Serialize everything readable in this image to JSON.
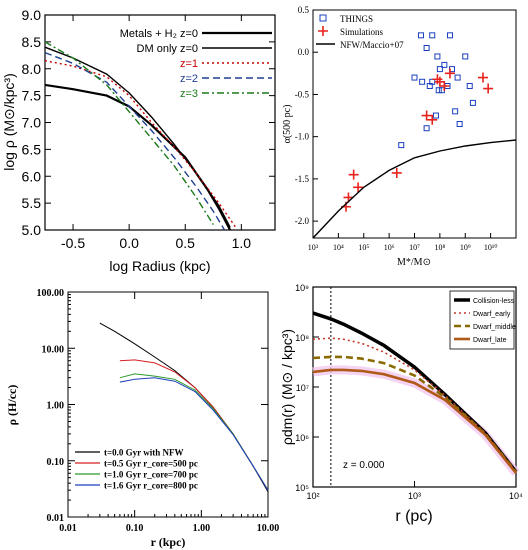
{
  "chart_data": [
    {
      "type": "line",
      "xlabel": "log Radius (kpc)",
      "ylabel": "log ρ (M⊙/kpc³)",
      "xlim": [
        -0.75,
        1.3
      ],
      "ylim": [
        5.0,
        9.0
      ],
      "xticks": [
        "-0.5",
        "0.0",
        "0.5",
        "1.0"
      ],
      "yticks": [
        "5.0",
        "5.5",
        "6.0",
        "6.5",
        "7.0",
        "7.5",
        "8.0",
        "8.5",
        "9.0"
      ],
      "legend_position": "top-right",
      "series": [
        {
          "name": "Metals + H₂  z=0",
          "color": "#000000",
          "style": "solid",
          "width": 2.2,
          "x": [
            -0.75,
            -0.5,
            -0.2,
            0.0,
            0.2,
            0.4,
            0.5,
            0.6,
            0.7,
            0.8,
            0.9
          ],
          "y": [
            7.7,
            7.62,
            7.5,
            7.3,
            6.95,
            6.55,
            6.35,
            6.05,
            5.75,
            5.4,
            5.0
          ]
        },
        {
          "name": "DM only  z=0",
          "color": "#000000",
          "style": "solid",
          "width": 1.4,
          "x": [
            -0.75,
            -0.5,
            -0.2,
            0.0,
            0.2,
            0.4,
            0.6,
            0.8,
            0.9
          ],
          "y": [
            8.4,
            8.2,
            7.9,
            7.55,
            7.1,
            6.6,
            6.05,
            5.45,
            5.05
          ]
        },
        {
          "name": "z=1",
          "color": "#cc0000",
          "style": "dotted",
          "width": 1.4,
          "x": [
            -0.75,
            -0.5,
            -0.2,
            0.0,
            0.2,
            0.4,
            0.6,
            0.8,
            0.95
          ],
          "y": [
            8.15,
            8.05,
            7.85,
            7.5,
            7.0,
            6.55,
            6.05,
            5.5,
            5.05
          ]
        },
        {
          "name": "z=2",
          "color": "#1f3f8f",
          "style": "dashed",
          "width": 1.4,
          "x": [
            -0.75,
            -0.5,
            -0.2,
            0.0,
            0.2,
            0.4,
            0.6,
            0.75,
            0.85
          ],
          "y": [
            8.3,
            8.1,
            7.75,
            7.3,
            6.85,
            6.35,
            5.8,
            5.35,
            5.0
          ]
        },
        {
          "name": "z=3",
          "color": "#1a7a1a",
          "style": "dashdot",
          "width": 1.4,
          "x": [
            -0.75,
            -0.5,
            -0.2,
            0.0,
            0.2,
            0.4,
            0.6,
            0.75
          ],
          "y": [
            8.5,
            8.2,
            7.7,
            7.2,
            6.7,
            6.2,
            5.6,
            5.1
          ]
        }
      ]
    },
    {
      "type": "scatter",
      "xlabel": "M*/M⊙",
      "ylabel": "α(500 pc)",
      "xscale": "log",
      "xlim": [
        1000,
        100000000000.0
      ],
      "ylim": [
        -2.2,
        0.5
      ],
      "xticks": [
        "10³",
        "10⁴",
        "10⁵",
        "10⁶",
        "10⁷",
        "10⁸",
        "10⁹",
        "10¹⁰"
      ],
      "yticks": [
        "0.5",
        "0.0",
        "-0.5",
        "-1.0",
        "-1.5",
        "-2.0"
      ],
      "legend_position": "top-left",
      "legend": [
        "THINGS",
        "Simulations",
        "NFW/Maccio+07"
      ],
      "series": [
        {
          "name": "THINGS",
          "marker": "square",
          "color": "#1a3fbf",
          "x": [
            10000000.0,
            20000000.0,
            30000000.0,
            40000000.0,
            50000000.0,
            70000000.0,
            100000000.0,
            150000000.0,
            200000000.0,
            300000000.0,
            500000000.0,
            1000000000.0,
            2000000000.0,
            50000000.0,
            80000000.0,
            120000000.0,
            30000000.0,
            250000000.0,
            600000000.0,
            1500000000.0,
            3000000.0,
            18000000.0,
            400000000.0,
            90000000.0
          ],
          "y": [
            -0.3,
            -0.35,
            0.05,
            -0.4,
            -0.35,
            -0.75,
            -0.2,
            -0.15,
            -0.4,
            -0.2,
            -0.3,
            -0.05,
            -0.6,
            0.2,
            -0.05,
            -0.45,
            -0.9,
            0.2,
            -0.85,
            -0.4,
            -1.1,
            0.2,
            -0.7,
            -0.45
          ]
        },
        {
          "name": "Simulations",
          "marker": "plus",
          "color": "#e8221c",
          "x": [
            20000.0,
            25000.0,
            40000.0,
            60000.0,
            2000000.0,
            30000000.0,
            50000000.0,
            80000000.0,
            100000000.0,
            150000000.0,
            250000000.0,
            5000000000.0,
            8000000000.0
          ],
          "y": [
            -1.83,
            -1.72,
            -1.45,
            -1.6,
            -1.43,
            -0.75,
            -0.8,
            -0.32,
            -0.35,
            -0.4,
            -0.25,
            -0.3,
            -0.43
          ]
        },
        {
          "name": "NFW/Maccio+07",
          "type": "line",
          "color": "#000000",
          "x": [
            1000,
            10000.0,
            100000.0,
            1000000.0,
            10000000.0,
            100000000.0,
            1000000000.0,
            10000000000.0,
            100000000000.0
          ],
          "y": [
            -2.2,
            -1.88,
            -1.6,
            -1.4,
            -1.25,
            -1.17,
            -1.11,
            -1.07,
            -1.04
          ]
        }
      ]
    },
    {
      "type": "line",
      "xlabel": "r (kpc)",
      "ylabel": "ρ (H/cc)",
      "xscale": "log",
      "yscale": "log",
      "xlim": [
        0.01,
        10.0
      ],
      "ylim": [
        0.01,
        100.0
      ],
      "xticks": [
        "0.01",
        "0.10",
        "1.00",
        "10.00"
      ],
      "yticks": [
        "100.00",
        "10.00",
        "1.00",
        "0.10",
        "0.01"
      ],
      "legend_position": "bottom-left",
      "series": [
        {
          "name": "t=0.0 Gyr with NFW",
          "color": "#000000",
          "x": [
            0.03,
            0.05,
            0.1,
            0.2,
            0.4,
            0.8,
            1.5,
            3.0,
            6.0,
            10.0
          ],
          "y": [
            28,
            20,
            12,
            7,
            4.0,
            2.0,
            0.9,
            0.3,
            0.08,
            0.028
          ]
        },
        {
          "name": "t=0.5 Gyr r_core=500 pc",
          "color": "#d62020",
          "x": [
            0.06,
            0.1,
            0.2,
            0.4,
            0.8,
            1.5,
            3.0,
            6.0,
            10.0
          ],
          "y": [
            6.0,
            6.2,
            5.5,
            3.8,
            2.0,
            0.9,
            0.3,
            0.08,
            0.03
          ]
        },
        {
          "name": "t=1.0 Gyr r_core=700 pc",
          "color": "#2a9a2a",
          "x": [
            0.06,
            0.1,
            0.2,
            0.4,
            0.8,
            1.5,
            3.0,
            6.0,
            10.0
          ],
          "y": [
            3.0,
            3.5,
            3.2,
            2.8,
            1.8,
            0.85,
            0.3,
            0.08,
            0.03
          ]
        },
        {
          "name": "t=1.6 Gyr r_core=800 pc",
          "color": "#1f3fbf",
          "x": [
            0.06,
            0.1,
            0.2,
            0.4,
            0.8,
            1.5,
            3.0,
            6.0,
            10.0
          ],
          "y": [
            2.5,
            2.8,
            3.0,
            2.6,
            1.7,
            0.8,
            0.29,
            0.08,
            0.03
          ]
        }
      ]
    },
    {
      "type": "line",
      "xlabel": "r (pc)",
      "ylabel": "ρdm(r) (M⊙ / kpc³)",
      "xscale": "log",
      "yscale": "log",
      "xlim": [
        100,
        10000
      ],
      "ylim": [
        100000,
        1000000000
      ],
      "xticks": [
        "10²",
        "10³",
        "10⁴"
      ],
      "yticks": [
        "10⁹",
        "10⁸",
        "10⁷",
        "10⁶",
        "10⁵"
      ],
      "legend_position": "top-right",
      "annotation": "z = 0.000",
      "vline_x": 150,
      "series": [
        {
          "name": "Collision-less",
          "color": "#000000",
          "style": "solid",
          "x": [
            100,
            150,
            200,
            300,
            500,
            1000,
            2000,
            5000,
            10000
          ],
          "y": [
            300000000,
            230000000,
            180000000,
            120000000,
            68000000,
            25000000,
            7000000,
            1200000,
            200000
          ]
        },
        {
          "name": "Dwarf_early",
          "color": "#c0392b",
          "style": "dotted",
          "x": [
            100,
            150,
            200,
            300,
            500,
            1000,
            2000,
            5000,
            10000
          ],
          "y": [
            90000000,
            95000000,
            90000000,
            75000000,
            50000000,
            22000000,
            6800000,
            1200000,
            200000
          ]
        },
        {
          "name": "Dwarf_middle",
          "color": "#8a6a00",
          "style": "dashed",
          "x": [
            100,
            150,
            200,
            300,
            500,
            1000,
            2000,
            5000,
            10000
          ],
          "y": [
            38000000,
            40000000,
            40000000,
            37000000,
            30000000,
            17000000,
            6200000,
            1150000,
            200000
          ]
        },
        {
          "name": "Dwarf_late",
          "color": "#b05a1a",
          "style": "solid",
          "x": [
            100,
            150,
            200,
            300,
            500,
            1000,
            2000,
            5000,
            10000
          ],
          "y": [
            20000000,
            22000000,
            22000000,
            21000000,
            18000000,
            12000000,
            5500000,
            1100000,
            190000
          ]
        }
      ]
    }
  ]
}
